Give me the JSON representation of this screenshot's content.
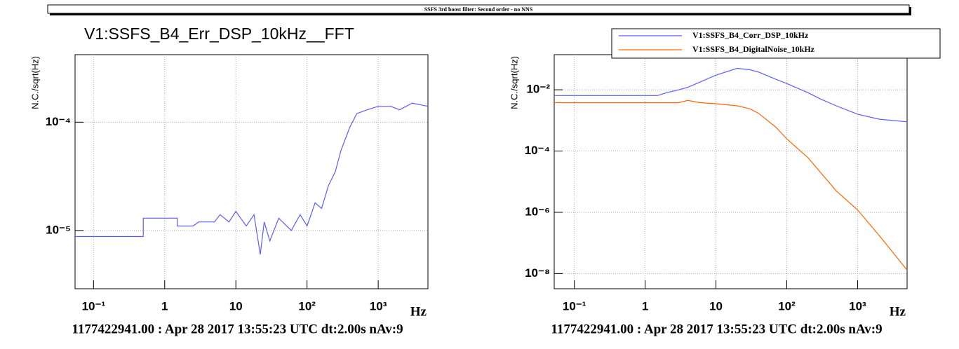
{
  "header": "SSFS 3rd boost filter: Second order - no NNS",
  "chart_data": [
    {
      "type": "line",
      "title": "V1:SSFS_B4_Err_DSP_10kHz__FFT",
      "x_label": "Hz",
      "y_label": "N.C./sqrt(Hz)",
      "footer": "1177422941.00 : Apr 28 2017 13:55:23 UTC dt:2.00s nAv:9",
      "xlog": true,
      "ylog": true,
      "grid": true,
      "xlim": [
        0.055,
        5000
      ],
      "ylim": [
        2.9e-06,
        0.00042
      ],
      "xticks": [
        {
          "value": 0.1,
          "label": "10⁻¹"
        },
        1,
        10,
        {
          "value": 100,
          "label": "10²"
        },
        {
          "value": 1000,
          "label": "10³"
        }
      ],
      "yticks": [
        {
          "value": 1e-05,
          "label": "10⁻⁵"
        },
        {
          "value": 0.0001,
          "label": "10⁻⁴"
        }
      ],
      "x": [
        0.055,
        0.5,
        0.5,
        1.5,
        1.5,
        2.5,
        3,
        5,
        6,
        8,
        10,
        14,
        18,
        22,
        25,
        30,
        40,
        60,
        80,
        100,
        130,
        160,
        200,
        250,
        300,
        400,
        500,
        700,
        1000,
        1500,
        2000,
        3000,
        5000
      ],
      "series": [
        {
          "name": null,
          "color": "#5c5cff",
          "values": [
            8.8e-06,
            8.8e-06,
            1.3e-05,
            1.3e-05,
            1.1e-05,
            1.1e-05,
            1.2e-05,
            1.2e-05,
            1.4e-05,
            1.2e-05,
            1.5e-05,
            1.1e-05,
            1.4e-05,
            6e-06,
            1.2e-05,
            8e-06,
            1.3e-05,
            1e-05,
            1.4e-05,
            1.1e-05,
            1.8e-05,
            1.6e-05,
            2.6e-05,
            3.5e-05,
            5.5e-05,
            9e-05,
            0.00012,
            0.00013,
            0.00014,
            0.00014,
            0.00013,
            0.00015,
            0.00014
          ]
        }
      ]
    },
    {
      "type": "line",
      "x_label": "Hz",
      "y_label": "N.C./sqrt(Hz)",
      "footer": "1177422941.00 : Apr 28 2017 13:55:23 UTC dt:2.00s nAv:9",
      "xlog": true,
      "ylog": true,
      "grid": true,
      "legend": "top-right",
      "xlim": [
        0.052,
        5000
      ],
      "ylim": [
        3.2e-09,
        0.14
      ],
      "xticks": [
        {
          "value": 0.1,
          "label": "10⁻¹"
        },
        1,
        10,
        {
          "value": 100,
          "label": "10²"
        },
        {
          "value": 1000,
          "label": "10³"
        }
      ],
      "yticks": [
        {
          "value": 1e-08,
          "label": "10⁻⁸"
        },
        {
          "value": 1e-06,
          "label": "10⁻⁶"
        },
        {
          "value": 0.0001,
          "label": "10⁻⁴"
        },
        {
          "value": 0.01,
          "label": "10⁻²"
        }
      ],
      "x": [
        0.052,
        1.5,
        2,
        3,
        4,
        6,
        10,
        20,
        30,
        40,
        70,
        100,
        200,
        300,
        500,
        1000,
        2000,
        5000
      ],
      "series": [
        {
          "name": "V1:SSFS_B4_Corr_DSP_10kHz",
          "color": "#5c5cff",
          "values": [
            0.0065,
            0.0065,
            0.008,
            0.01,
            0.012,
            0.018,
            0.03,
            0.05,
            0.045,
            0.038,
            0.022,
            0.016,
            0.008,
            0.005,
            0.003,
            0.0016,
            0.0011,
            0.0009
          ]
        },
        {
          "name": "V1:SSFS_B4_DigitalNoise_10kHz",
          "color": "#ff6600",
          "values": [
            0.0038,
            0.0038,
            0.0038,
            0.0038,
            0.0045,
            0.0038,
            0.0035,
            0.003,
            0.0024,
            0.0017,
            0.0006,
            0.00025,
            6e-05,
            2e-05,
            5e-06,
            1.2e-06,
            1.8e-07,
            1.3e-08
          ]
        }
      ]
    }
  ]
}
